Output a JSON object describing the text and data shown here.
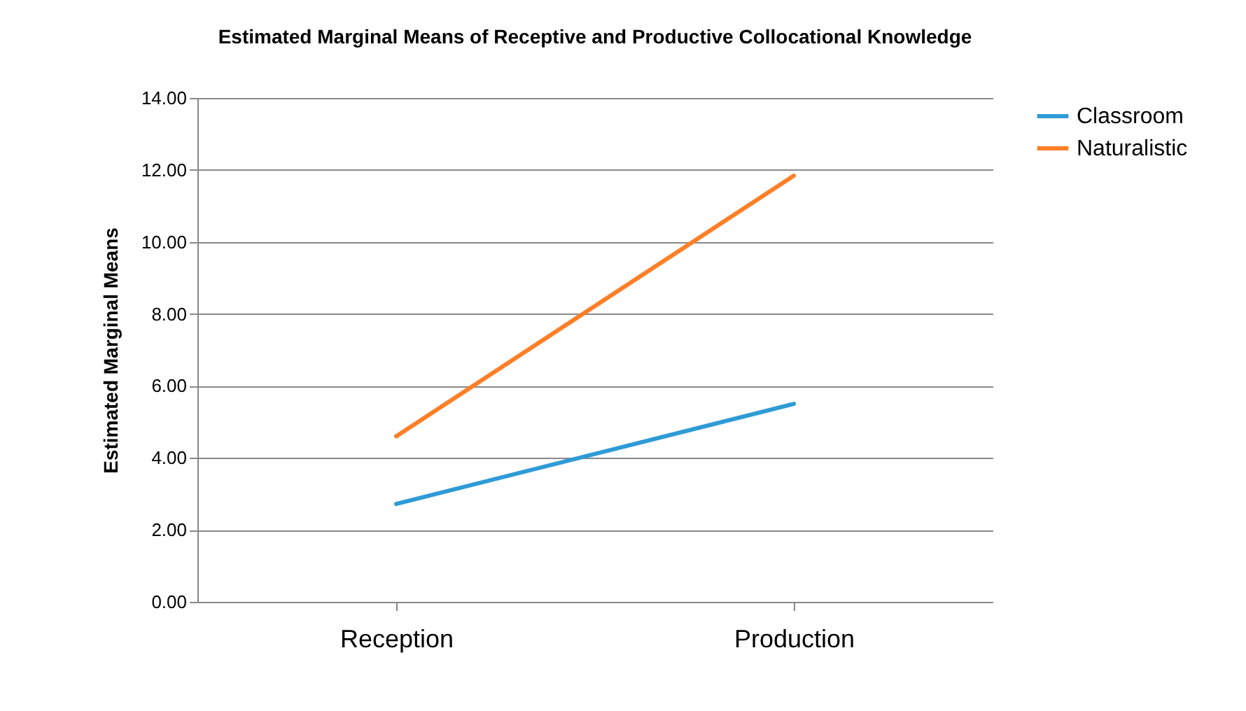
{
  "chart_data": {
    "type": "line",
    "title": "Estimated Marginal Means of Receptive and Productive Collocational Knowledge",
    "ylabel": "Estimated Marginal Means",
    "categories": [
      "Reception",
      "Production"
    ],
    "series": [
      {
        "name": "Classroom",
        "color": "#2e9bd6",
        "values": [
          2.72,
          5.5
        ]
      },
      {
        "name": "Naturalistic",
        "color": "#ff7f27",
        "values": [
          4.6,
          11.84
        ]
      }
    ],
    "ylim": [
      0,
      14
    ],
    "yticks": [
      {
        "value": 0,
        "label": "0.00"
      },
      {
        "value": 2,
        "label": "2.00"
      },
      {
        "value": 4,
        "label": "4.00"
      },
      {
        "value": 6,
        "label": "6.00"
      },
      {
        "value": 8,
        "label": "8.00"
      },
      {
        "value": 10,
        "label": "10.00"
      },
      {
        "value": 12,
        "label": "12.00"
      },
      {
        "value": 14,
        "label": "14.00"
      }
    ],
    "grid": "y",
    "legend": "right",
    "marker": "none",
    "line_style": "solid"
  }
}
